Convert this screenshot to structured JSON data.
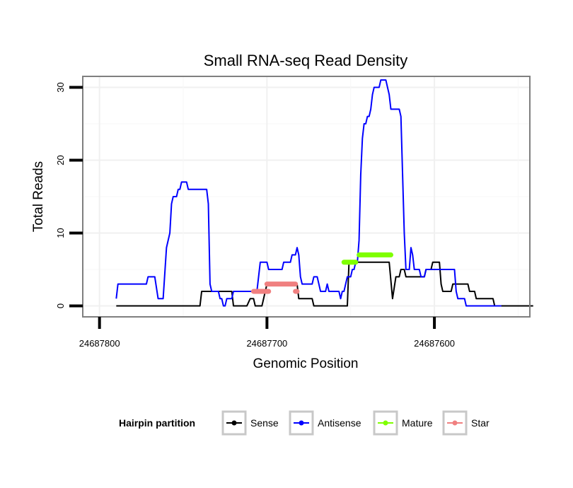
{
  "chart_data": {
    "type": "line",
    "title": "Small RNA-seq Read Density",
    "xlabel": "Genomic Position",
    "ylabel": "Total Reads",
    "x_reversed": true,
    "xlim": [
      24687810,
      24687543
    ],
    "ylim": [
      -1.5,
      31.5
    ],
    "x_ticks": [
      24687800,
      24687700,
      24687600
    ],
    "x_tick_labels": [
      "24687800",
      "24687700",
      "24687600"
    ],
    "y_ticks": [
      0,
      10,
      20,
      30
    ],
    "y_tick_labels": [
      "0",
      "10",
      "20",
      "30"
    ],
    "grid": true,
    "legend": {
      "title": "Hairpin partition",
      "placement": "bottom",
      "entries": [
        {
          "label": "Sense",
          "color": "#000000"
        },
        {
          "label": "Antisense",
          "color": "#0000ff"
        },
        {
          "label": "Mature",
          "color": "#7fff00"
        },
        {
          "label": "Star",
          "color": "#f08080"
        }
      ]
    },
    "series": [
      {
        "name": "Sense",
        "color": "#000000",
        "style": "line",
        "points": [
          [
            24687790,
            0
          ],
          [
            24687740,
            0
          ],
          [
            24687739,
            2
          ],
          [
            24687721,
            2
          ],
          [
            24687720,
            0
          ],
          [
            24687712,
            0
          ],
          [
            24687710,
            1
          ],
          [
            24687708,
            1
          ],
          [
            24687707,
            0
          ],
          [
            24687703,
            0
          ],
          [
            24687702,
            1
          ],
          [
            24687701,
            2
          ],
          [
            24687700,
            3
          ],
          [
            24687682,
            3
          ],
          [
            24687681,
            1
          ],
          [
            24687673,
            1
          ],
          [
            24687672,
            0
          ],
          [
            24687652,
            0
          ],
          [
            24687651,
            6
          ],
          [
            24687627,
            6
          ],
          [
            24687625,
            1
          ],
          [
            24687623,
            4
          ],
          [
            24687621,
            4
          ],
          [
            24687620,
            5
          ],
          [
            24687618,
            5
          ],
          [
            24687617,
            4
          ],
          [
            24687606,
            4
          ],
          [
            24687605,
            5
          ],
          [
            24687602,
            5
          ],
          [
            24687601,
            6
          ],
          [
            24687597,
            6
          ],
          [
            24687596,
            3
          ],
          [
            24687595,
            2
          ],
          [
            24687590,
            2
          ],
          [
            24687589,
            3
          ],
          [
            24687580,
            3
          ],
          [
            24687579,
            2
          ],
          [
            24687576,
            2
          ],
          [
            24687575,
            1
          ],
          [
            24687565,
            1
          ],
          [
            24687564,
            0
          ],
          [
            24687541,
            0
          ]
        ]
      },
      {
        "name": "Antisense",
        "color": "#0000ff",
        "style": "line",
        "points": [
          [
            24687790,
            1
          ],
          [
            24687789,
            3
          ],
          [
            24687772,
            3
          ],
          [
            24687771,
            4
          ],
          [
            24687767,
            4
          ],
          [
            24687765,
            1
          ],
          [
            24687762,
            1
          ],
          [
            24687760,
            8
          ],
          [
            24687758,
            10
          ],
          [
            24687757,
            14
          ],
          [
            24687756,
            15
          ],
          [
            24687754,
            15
          ],
          [
            24687753,
            16
          ],
          [
            24687752,
            16
          ],
          [
            24687751,
            17
          ],
          [
            24687748,
            17
          ],
          [
            24687747,
            16
          ],
          [
            24687736,
            16
          ],
          [
            24687735,
            14
          ],
          [
            24687734,
            3
          ],
          [
            24687733,
            2
          ],
          [
            24687729,
            2
          ],
          [
            24687728,
            1
          ],
          [
            24687727,
            1
          ],
          [
            24687726,
            0
          ],
          [
            24687725,
            0
          ],
          [
            24687724,
            1
          ],
          [
            24687721,
            1
          ],
          [
            24687720,
            2
          ],
          [
            24687706,
            2
          ],
          [
            24687705,
            4
          ],
          [
            24687704,
            6
          ],
          [
            24687700,
            6
          ],
          [
            24687699,
            5
          ],
          [
            24687691,
            5
          ],
          [
            24687690,
            6
          ],
          [
            24687686,
            6
          ],
          [
            24687685,
            7
          ],
          [
            24687683,
            7
          ],
          [
            24687682,
            8
          ],
          [
            24687681,
            7
          ],
          [
            24687680,
            4
          ],
          [
            24687679,
            3
          ],
          [
            24687673,
            3
          ],
          [
            24687672,
            4
          ],
          [
            24687670,
            4
          ],
          [
            24687668,
            2
          ],
          [
            24687665,
            2
          ],
          [
            24687664,
            3
          ],
          [
            24687663,
            2
          ],
          [
            24687657,
            2
          ],
          [
            24687656,
            1
          ],
          [
            24687655,
            2
          ],
          [
            24687654,
            2
          ],
          [
            24687652,
            4
          ],
          [
            24687650,
            4
          ],
          [
            24687649,
            5
          ],
          [
            24687648,
            5
          ],
          [
            24687647,
            6
          ],
          [
            24687646,
            6
          ],
          [
            24687645,
            9
          ],
          [
            24687644,
            18
          ],
          [
            24687643,
            23
          ],
          [
            24687642,
            25
          ],
          [
            24687641,
            25
          ],
          [
            24687640,
            26
          ],
          [
            24687639,
            26
          ],
          [
            24687638,
            27
          ],
          [
            24687637,
            29
          ],
          [
            24687636,
            30
          ],
          [
            24687633,
            30
          ],
          [
            24687632,
            31
          ],
          [
            24687629,
            31
          ],
          [
            24687627,
            29
          ],
          [
            24687626,
            27
          ],
          [
            24687621,
            27
          ],
          [
            24687620,
            26
          ],
          [
            24687618,
            10
          ],
          [
            24687617,
            5
          ],
          [
            24687615,
            5
          ],
          [
            24687614,
            8
          ],
          [
            24687613,
            7
          ],
          [
            24687612,
            5
          ],
          [
            24687609,
            5
          ],
          [
            24687608,
            4
          ],
          [
            24687606,
            4
          ],
          [
            24687605,
            5
          ],
          [
            24687588,
            5
          ],
          [
            24687587,
            2
          ],
          [
            24687586,
            1
          ],
          [
            24687582,
            1
          ],
          [
            24687581,
            0
          ],
          [
            24687560,
            0
          ]
        ]
      },
      {
        "name": "Mature",
        "color": "#7fff00",
        "style": "segments",
        "segments": [
          {
            "x0": 24687654,
            "x1": 24687647,
            "y": 6
          },
          {
            "x0": 24687645,
            "x1": 24687626,
            "y": 7
          }
        ]
      },
      {
        "name": "Star",
        "color": "#f08080",
        "style": "segments",
        "segments": [
          {
            "x0": 24687708,
            "x1": 24687699,
            "y": 2
          },
          {
            "x0": 24687700,
            "x1": 24687683,
            "y": 3
          },
          {
            "x0": 24687683,
            "x1": 24687682,
            "y": 2
          }
        ]
      }
    ]
  }
}
